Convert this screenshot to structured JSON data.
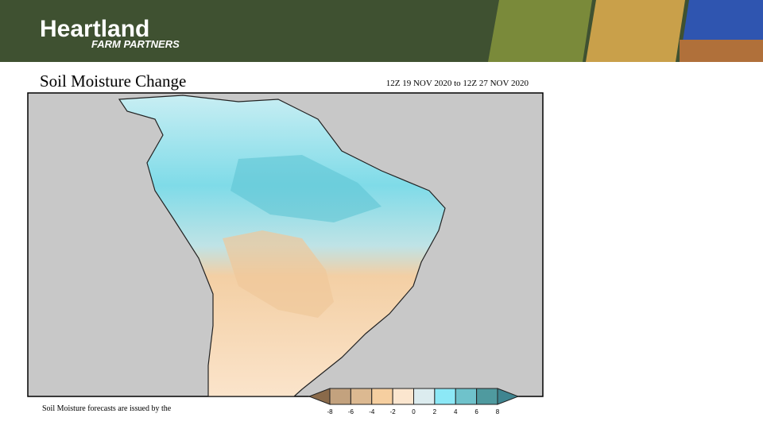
{
  "header": {
    "brand": "Heartland",
    "tagline": "FARM PARTNERS"
  },
  "title": "Soil Moisture Change",
  "date_range": "12Z 19 NOV 2020 to 12Z 27 NOV 2020",
  "footnote": "Soil Moisture forecasts are issued by the",
  "legend": {
    "lim": [
      -8,
      8
    ],
    "ticks": [
      -8,
      -6,
      -4,
      -2,
      0,
      2,
      4,
      6,
      8
    ],
    "colors": [
      "#8a6a4a",
      "#c3a27e",
      "#dcb991",
      "#f6cfa0",
      "#fbe6cf",
      "#dcecef",
      "#8ce8f6",
      "#6fc2cb",
      "#4f9a9f",
      "#3f8590"
    ]
  }
}
